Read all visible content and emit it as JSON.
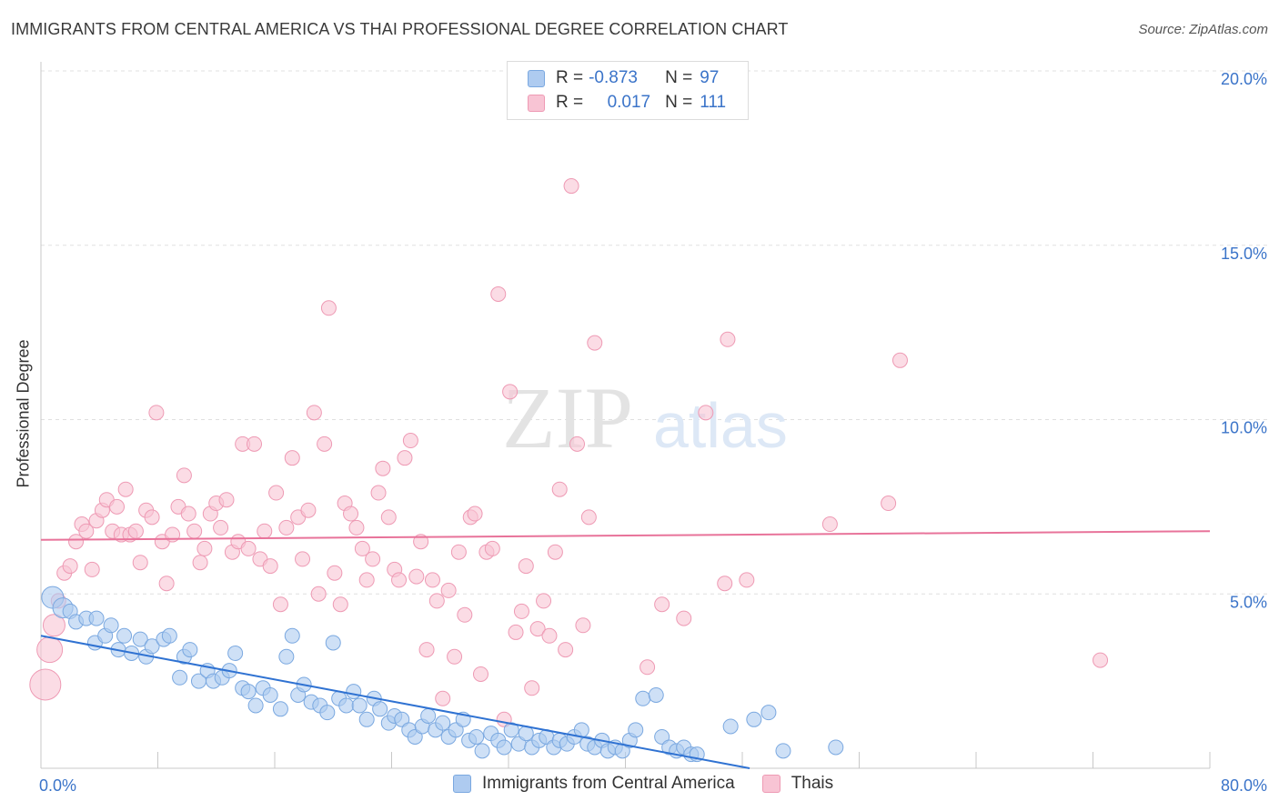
{
  "header": {
    "title": "IMMIGRANTS FROM CENTRAL AMERICA VS THAI PROFESSIONAL DEGREE CORRELATION CHART",
    "source": "Source: ZipAtlas.com"
  },
  "legend": {
    "rows": [
      {
        "r_label": "R =",
        "r_value": "-0.873",
        "n_label": "N =",
        "n_value": "97"
      },
      {
        "r_label": "R =",
        "r_value": "0.017",
        "n_label": "N =",
        "n_value": "111"
      }
    ]
  },
  "watermark": {
    "zip": "ZIP",
    "atlas": "atlas"
  },
  "colors": {
    "blue_fill": "#aecbf0",
    "blue_stroke": "#7aa8e0",
    "blue_line": "#2f72d2",
    "pink_fill": "#f8c4d4",
    "pink_stroke": "#ee9ab4",
    "pink_line": "#e8739a",
    "axis_label": "#3b74c9",
    "grid": "#e0e0e0"
  },
  "chart_data": {
    "type": "scatter",
    "title": "IMMIGRANTS FROM CENTRAL AMERICA VS THAI PROFESSIONAL DEGREE CORRELATION CHART",
    "xlabel": "",
    "ylabel": "Professional Degree",
    "xlim": [
      0,
      80
    ],
    "ylim": [
      0,
      20
    ],
    "x_tick_labels": [
      "0.0%",
      "80.0%"
    ],
    "y_ticks": [
      5,
      10,
      15,
      20
    ],
    "y_tick_labels": [
      "5.0%",
      "10.0%",
      "15.0%",
      "20.0%"
    ],
    "grid": "horizontal dashed",
    "legend_position": "top-center",
    "series": [
      {
        "name": "Immigrants from Central America",
        "color": "#aecbf0",
        "r": -0.873,
        "n": 97,
        "trend": {
          "x": [
            0,
            48.5
          ],
          "y": [
            3.8,
            0
          ]
        },
        "points": [
          [
            0.8,
            4.9
          ],
          [
            1.5,
            4.6
          ],
          [
            2.0,
            4.5
          ],
          [
            2.4,
            4.2
          ],
          [
            3.1,
            4.3
          ],
          [
            3.8,
            4.3
          ],
          [
            3.7,
            3.6
          ],
          [
            4.4,
            3.8
          ],
          [
            4.8,
            4.1
          ],
          [
            5.3,
            3.4
          ],
          [
            5.7,
            3.8
          ],
          [
            6.2,
            3.3
          ],
          [
            6.8,
            3.7
          ],
          [
            7.2,
            3.2
          ],
          [
            7.6,
            3.5
          ],
          [
            8.4,
            3.7
          ],
          [
            8.8,
            3.8
          ],
          [
            9.5,
            2.6
          ],
          [
            9.8,
            3.2
          ],
          [
            10.2,
            3.4
          ],
          [
            10.8,
            2.5
          ],
          [
            11.4,
            2.8
          ],
          [
            11.8,
            2.5
          ],
          [
            12.4,
            2.6
          ],
          [
            12.9,
            2.8
          ],
          [
            13.3,
            3.3
          ],
          [
            13.8,
            2.3
          ],
          [
            14.2,
            2.2
          ],
          [
            14.7,
            1.8
          ],
          [
            15.2,
            2.3
          ],
          [
            15.7,
            2.1
          ],
          [
            16.4,
            1.7
          ],
          [
            16.8,
            3.2
          ],
          [
            17.2,
            3.8
          ],
          [
            17.6,
            2.1
          ],
          [
            18.0,
            2.4
          ],
          [
            18.5,
            1.9
          ],
          [
            19.1,
            1.8
          ],
          [
            19.6,
            1.6
          ],
          [
            20.0,
            3.6
          ],
          [
            20.4,
            2.0
          ],
          [
            20.9,
            1.8
          ],
          [
            21.4,
            2.2
          ],
          [
            21.8,
            1.8
          ],
          [
            22.3,
            1.4
          ],
          [
            22.8,
            2.0
          ],
          [
            23.2,
            1.7
          ],
          [
            23.8,
            1.3
          ],
          [
            24.2,
            1.5
          ],
          [
            24.7,
            1.4
          ],
          [
            25.2,
            1.1
          ],
          [
            25.6,
            0.9
          ],
          [
            26.1,
            1.2
          ],
          [
            26.5,
            1.5
          ],
          [
            27.0,
            1.1
          ],
          [
            27.5,
            1.3
          ],
          [
            27.9,
            0.9
          ],
          [
            28.4,
            1.1
          ],
          [
            28.9,
            1.4
          ],
          [
            29.3,
            0.8
          ],
          [
            29.8,
            0.9
          ],
          [
            30.2,
            0.5
          ],
          [
            30.8,
            1.0
          ],
          [
            31.3,
            0.8
          ],
          [
            31.7,
            0.6
          ],
          [
            32.2,
            1.1
          ],
          [
            32.7,
            0.7
          ],
          [
            33.2,
            1.0
          ],
          [
            33.6,
            0.6
          ],
          [
            34.1,
            0.8
          ],
          [
            34.6,
            0.9
          ],
          [
            35.1,
            0.6
          ],
          [
            35.5,
            0.8
          ],
          [
            36.0,
            0.7
          ],
          [
            36.5,
            0.9
          ],
          [
            37.0,
            1.1
          ],
          [
            37.4,
            0.7
          ],
          [
            37.9,
            0.6
          ],
          [
            38.4,
            0.8
          ],
          [
            38.8,
            0.5
          ],
          [
            39.3,
            0.6
          ],
          [
            39.8,
            0.5
          ],
          [
            40.3,
            0.8
          ],
          [
            40.7,
            1.1
          ],
          [
            41.2,
            2.0
          ],
          [
            42.1,
            2.1
          ],
          [
            42.5,
            0.9
          ],
          [
            43.0,
            0.6
          ],
          [
            43.5,
            0.5
          ],
          [
            44.0,
            0.6
          ],
          [
            44.5,
            0.4
          ],
          [
            44.9,
            0.4
          ],
          [
            47.2,
            1.2
          ],
          [
            48.8,
            1.4
          ],
          [
            49.8,
            1.6
          ],
          [
            50.8,
            0.5
          ],
          [
            54.4,
            0.6
          ]
        ]
      },
      {
        "name": "Thais",
        "color": "#f8c4d4",
        "r": 0.017,
        "n": 111,
        "trend": {
          "x": [
            0,
            80
          ],
          "y": [
            6.55,
            6.8
          ]
        },
        "points": [
          [
            0.3,
            2.4
          ],
          [
            0.6,
            3.4
          ],
          [
            0.9,
            4.1
          ],
          [
            1.2,
            4.8
          ],
          [
            1.6,
            5.6
          ],
          [
            2.0,
            5.8
          ],
          [
            2.4,
            6.5
          ],
          [
            2.8,
            7.0
          ],
          [
            3.1,
            6.8
          ],
          [
            3.5,
            5.7
          ],
          [
            3.8,
            7.1
          ],
          [
            4.2,
            7.4
          ],
          [
            4.5,
            7.7
          ],
          [
            4.9,
            6.8
          ],
          [
            5.2,
            7.5
          ],
          [
            5.5,
            6.7
          ],
          [
            5.8,
            8.0
          ],
          [
            6.1,
            6.7
          ],
          [
            6.5,
            6.8
          ],
          [
            6.8,
            5.9
          ],
          [
            7.2,
            7.4
          ],
          [
            7.6,
            7.2
          ],
          [
            7.9,
            10.2
          ],
          [
            8.3,
            6.5
          ],
          [
            8.6,
            5.3
          ],
          [
            9.0,
            6.7
          ],
          [
            9.4,
            7.5
          ],
          [
            9.8,
            8.4
          ],
          [
            10.1,
            7.3
          ],
          [
            10.5,
            6.8
          ],
          [
            10.9,
            5.9
          ],
          [
            11.2,
            6.3
          ],
          [
            11.6,
            7.3
          ],
          [
            12.0,
            7.6
          ],
          [
            12.3,
            6.9
          ],
          [
            12.7,
            7.7
          ],
          [
            13.1,
            6.2
          ],
          [
            13.5,
            6.5
          ],
          [
            13.8,
            9.3
          ],
          [
            14.2,
            6.3
          ],
          [
            14.6,
            9.3
          ],
          [
            15.0,
            6.0
          ],
          [
            15.3,
            6.8
          ],
          [
            15.7,
            5.8
          ],
          [
            16.1,
            7.9
          ],
          [
            16.4,
            4.7
          ],
          [
            16.8,
            6.9
          ],
          [
            17.2,
            8.9
          ],
          [
            17.6,
            7.2
          ],
          [
            17.9,
            6.0
          ],
          [
            18.3,
            7.4
          ],
          [
            18.7,
            10.2
          ],
          [
            19.0,
            5.0
          ],
          [
            19.4,
            9.3
          ],
          [
            19.7,
            13.2
          ],
          [
            20.1,
            5.6
          ],
          [
            20.5,
            4.7
          ],
          [
            20.8,
            7.6
          ],
          [
            21.2,
            7.3
          ],
          [
            21.6,
            6.9
          ],
          [
            22.0,
            6.3
          ],
          [
            22.3,
            5.4
          ],
          [
            22.7,
            6.0
          ],
          [
            23.1,
            7.9
          ],
          [
            23.4,
            8.6
          ],
          [
            23.8,
            7.2
          ],
          [
            24.2,
            5.7
          ],
          [
            24.5,
            5.4
          ],
          [
            24.9,
            8.9
          ],
          [
            25.3,
            9.4
          ],
          [
            25.7,
            5.5
          ],
          [
            26.0,
            6.5
          ],
          [
            26.4,
            3.4
          ],
          [
            26.8,
            5.4
          ],
          [
            27.1,
            4.8
          ],
          [
            27.5,
            2.0
          ],
          [
            27.9,
            5.1
          ],
          [
            28.3,
            3.2
          ],
          [
            28.6,
            6.2
          ],
          [
            29.0,
            4.4
          ],
          [
            29.4,
            7.2
          ],
          [
            29.7,
            7.3
          ],
          [
            30.1,
            2.7
          ],
          [
            30.5,
            6.2
          ],
          [
            30.9,
            6.3
          ],
          [
            31.3,
            13.6
          ],
          [
            31.7,
            1.4
          ],
          [
            32.1,
            10.8
          ],
          [
            32.5,
            3.9
          ],
          [
            32.9,
            4.5
          ],
          [
            33.2,
            5.8
          ],
          [
            33.6,
            2.3
          ],
          [
            34.0,
            4.0
          ],
          [
            34.4,
            4.8
          ],
          [
            34.8,
            3.8
          ],
          [
            35.2,
            6.2
          ],
          [
            35.5,
            8.0
          ],
          [
            35.9,
            3.4
          ],
          [
            36.3,
            16.7
          ],
          [
            36.7,
            9.3
          ],
          [
            37.1,
            4.1
          ],
          [
            37.5,
            7.2
          ],
          [
            37.9,
            12.2
          ],
          [
            41.5,
            2.9
          ],
          [
            42.5,
            4.7
          ],
          [
            44.0,
            4.3
          ],
          [
            45.5,
            10.2
          ],
          [
            46.8,
            5.3
          ],
          [
            47.0,
            12.3
          ],
          [
            48.3,
            5.4
          ],
          [
            54.0,
            7.0
          ],
          [
            58.0,
            7.6
          ],
          [
            58.8,
            11.7
          ],
          [
            72.5,
            3.1
          ]
        ]
      }
    ]
  },
  "bottom_legend": {
    "items": [
      {
        "label": "Immigrants from Central America"
      },
      {
        "label": "Thais"
      }
    ]
  }
}
